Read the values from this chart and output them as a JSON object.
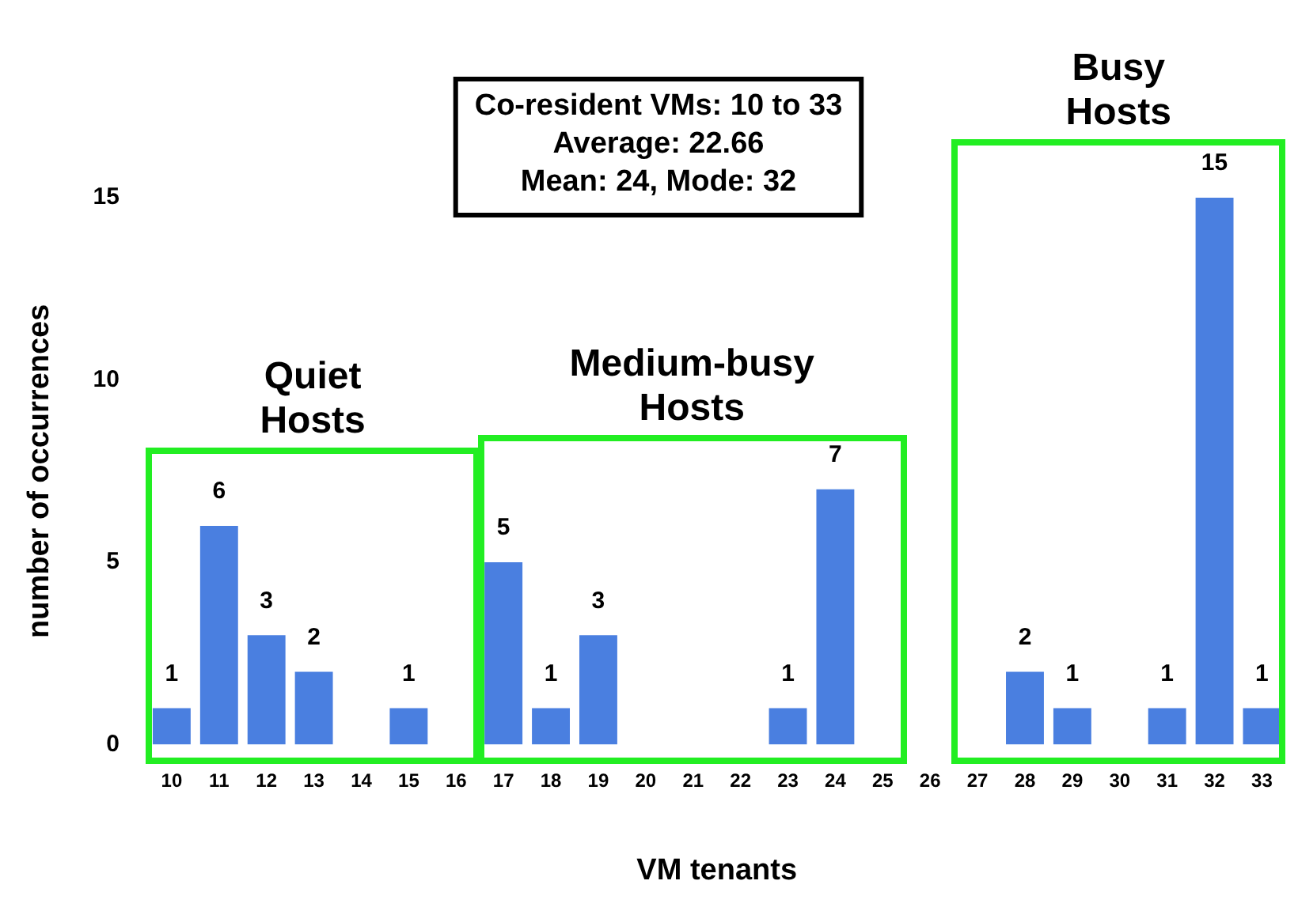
{
  "chart_data": {
    "type": "bar",
    "xlabel": "VM tenants",
    "ylabel": "number of occurrences",
    "categories": [
      "10",
      "11",
      "12",
      "13",
      "14",
      "15",
      "16",
      "17",
      "18",
      "19",
      "20",
      "21",
      "22",
      "23",
      "24",
      "25",
      "26",
      "27",
      "28",
      "29",
      "30",
      "31",
      "32",
      "33"
    ],
    "values": [
      1,
      6,
      3,
      2,
      0,
      1,
      0,
      5,
      1,
      3,
      0,
      0,
      0,
      1,
      7,
      0,
      0,
      0,
      2,
      1,
      0,
      1,
      15,
      1
    ],
    "value_labels": [
      "1",
      "6",
      "3",
      "2",
      null,
      "1",
      null,
      "5",
      "1",
      "3",
      null,
      null,
      null,
      "1",
      "7",
      null,
      null,
      null,
      "2",
      "1",
      null,
      "1",
      "15",
      "1"
    ],
    "color": "#4a7fe0",
    "ylim": [
      0,
      15
    ],
    "yticks": [
      0,
      5,
      10,
      15
    ],
    "annotations": [
      "Co-resident VMs: 10 to 33\nAverage: 22.66\nMean: 24, Mode: 32",
      "Quiet\nHosts",
      "Medium-busy\nHosts",
      "Busy\nHosts"
    ]
  }
}
